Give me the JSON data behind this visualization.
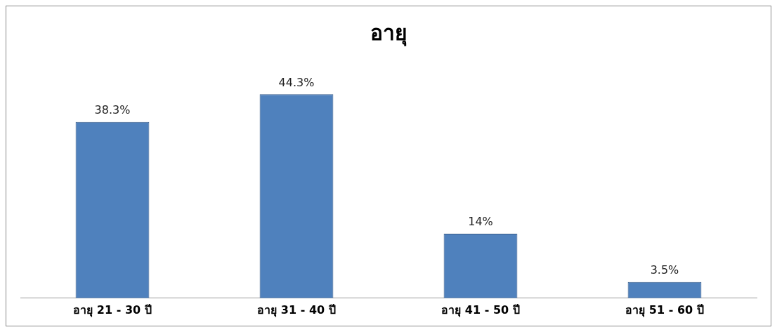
{
  "chart_data": {
    "type": "bar",
    "title": "อายุ",
    "categories": [
      "อายุ 21 - 30 ปี",
      "อายุ 31 - 40 ปี",
      "อายุ 41 - 50 ปี",
      "อายุ 51 - 60 ปี"
    ],
    "values": [
      38.3,
      44.3,
      14,
      3.5
    ],
    "value_labels": [
      "38.3%",
      "44.3%",
      "14%",
      "3.5%"
    ],
    "color": "#4f81bd",
    "grid": false,
    "legend": false
  }
}
